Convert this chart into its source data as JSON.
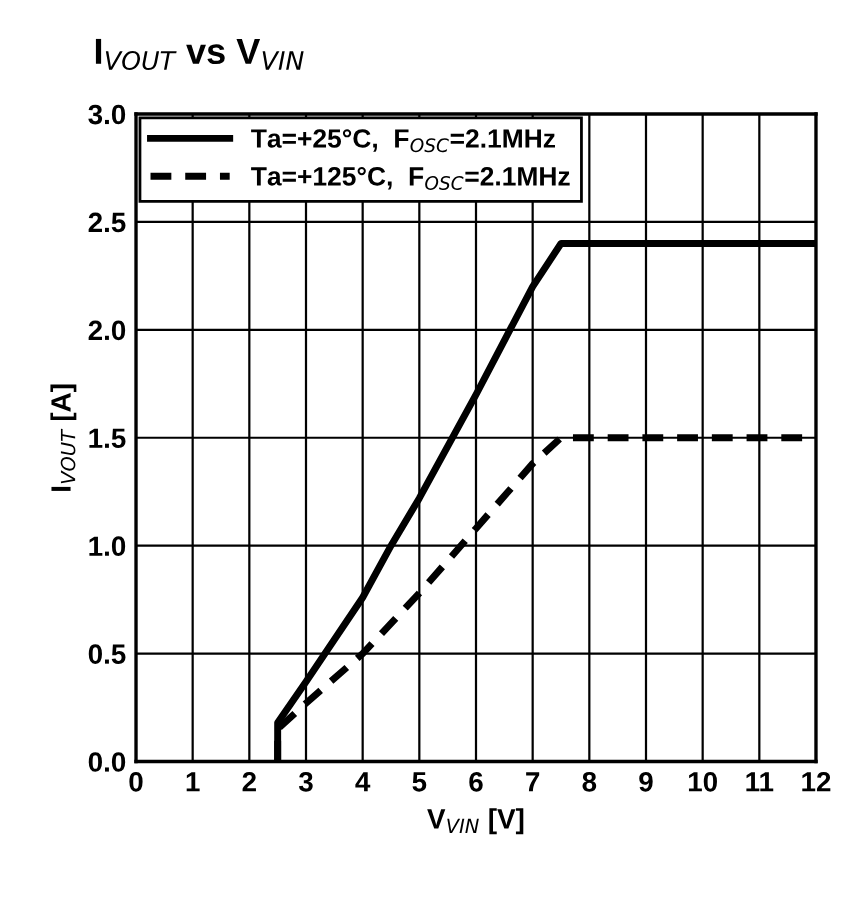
{
  "chart_data": {
    "type": "line",
    "title": "I$_{VOUT}$ vs V$_{VIN}$",
    "xlabel": "V$_{VIN}$ [V]",
    "ylabel": "I$_{VOUT}$ [A]",
    "series": [
      {
        "name": "Ta=+25°C,  F$_{OSC}$=2.1MHz",
        "color": "#000000",
        "line_style": "solid",
        "x": [
          2.5,
          2.5,
          3,
          4,
          4.5,
          5,
          6,
          7,
          7.5,
          12
        ],
        "values": [
          0,
          0.18,
          0.37,
          0.76,
          1.0,
          1.22,
          1.7,
          2.2,
          2.4,
          2.4
        ]
      },
      {
        "name": "Ta=+125°C,  F$_{OSC}$=2.1MHz",
        "color": "#000000",
        "line_style": "dashed",
        "x": [
          2.5,
          2.5,
          3,
          4,
          5,
          6,
          7,
          7.5,
          12
        ],
        "values": [
          0,
          0.15,
          0.27,
          0.5,
          0.78,
          1.08,
          1.38,
          1.5,
          1.5
        ]
      }
    ],
    "xlim": [
      0,
      12
    ],
    "xticks": [
      0,
      1,
      2,
      3,
      4,
      5,
      6,
      7,
      8,
      9,
      10,
      11,
      12
    ],
    "ylim": [
      0,
      3
    ],
    "yticks": [
      {
        "value": 0,
        "label": "0.0"
      },
      {
        "value": 0.5,
        "label": "0.5"
      },
      {
        "value": 1,
        "label": "1.0"
      },
      {
        "value": 1.5,
        "label": "1.5"
      },
      {
        "value": 2,
        "label": "2.0"
      },
      {
        "value": 2.5,
        "label": "2.5"
      },
      {
        "value": 3,
        "label": "3.0"
      }
    ],
    "grid": true,
    "legend": "top left",
    "marker": "none"
  }
}
